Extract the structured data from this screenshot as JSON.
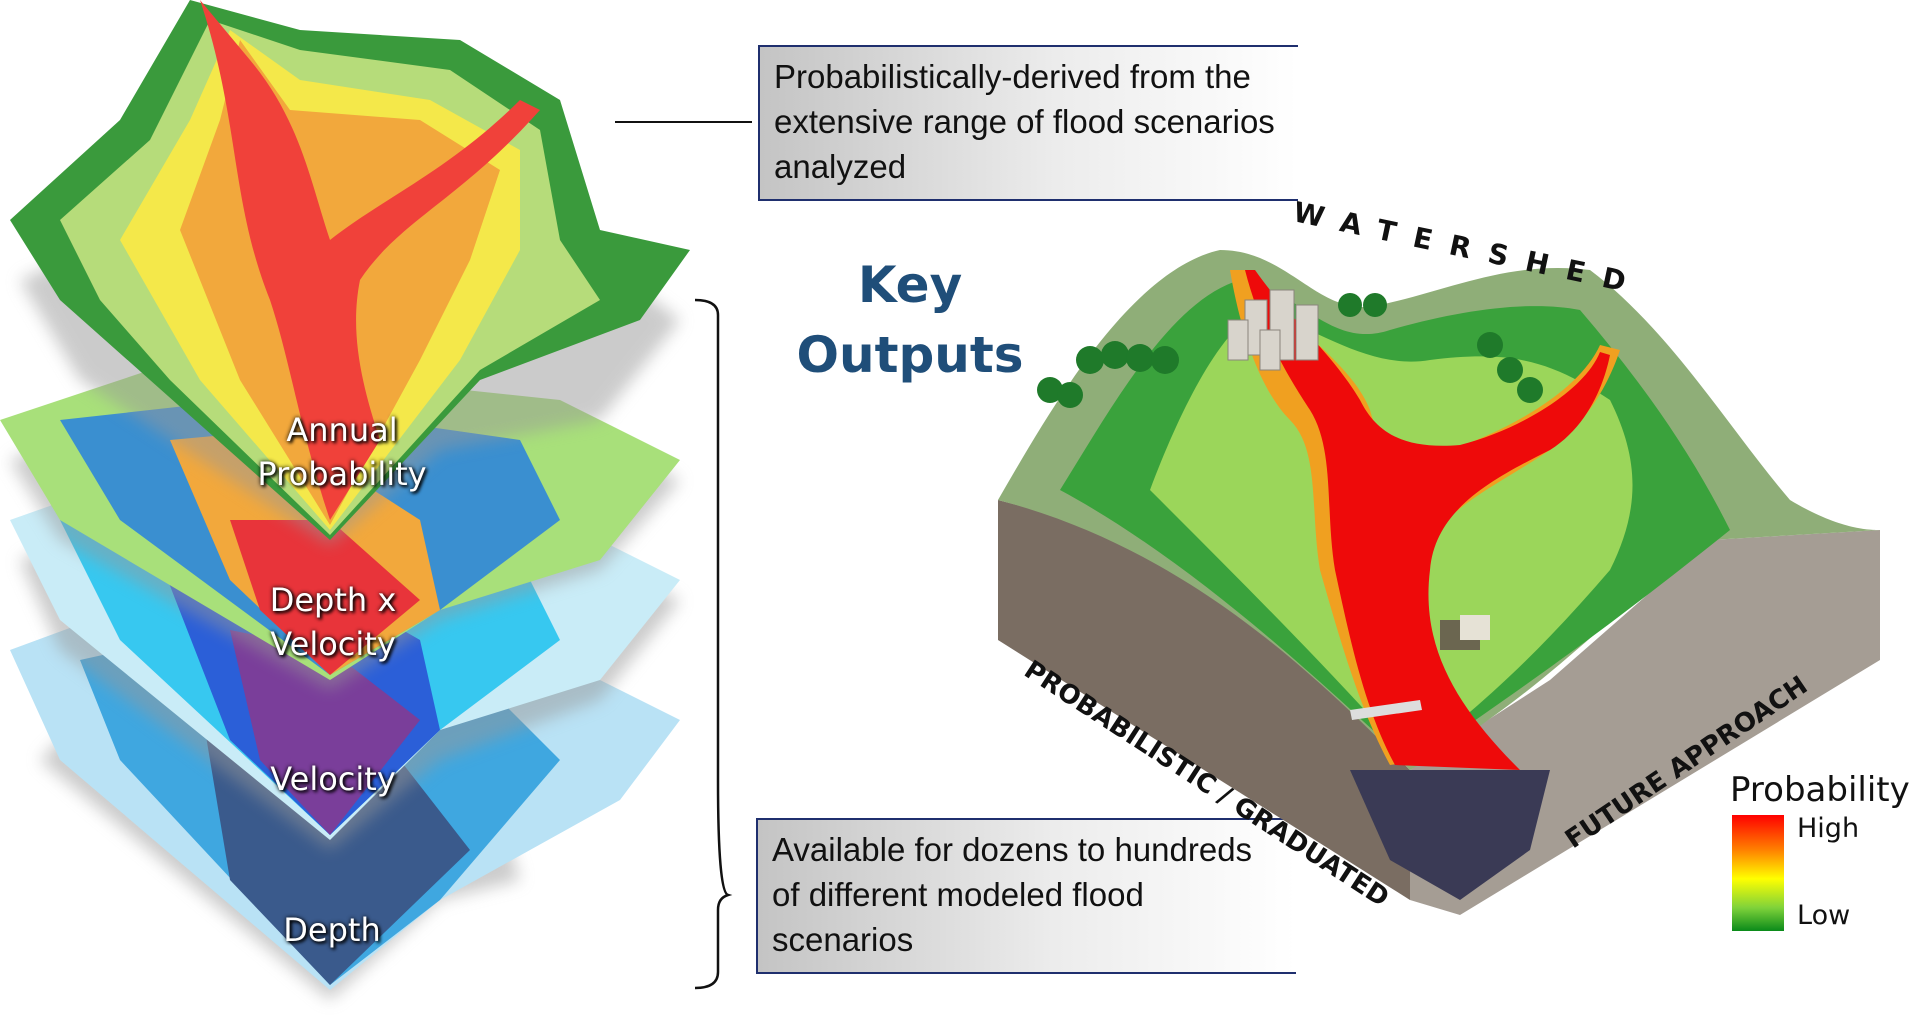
{
  "top_callout": {
    "text": "Probabilistically-derived from the extensive range of flood scenarios analyzed"
  },
  "bottom_callout": {
    "text": "Available for dozens to hundreds of different modeled flood scenarios"
  },
  "key_outputs": {
    "line1": "Key",
    "line2": "Outputs"
  },
  "layers": [
    {
      "label_line1": "Annual",
      "label_line2": "Probability"
    },
    {
      "label_line1": "Depth x",
      "label_line2": "Velocity"
    },
    {
      "label_line1": "Velocity",
      "label_line2": ""
    },
    {
      "label_line1": "Depth",
      "label_line2": ""
    }
  ],
  "watershed": {
    "title": "WATERSHED",
    "left_face_label": "PROBABILISTIC / GRADUATED",
    "right_face_label": "FUTURE APPROACH"
  },
  "legend": {
    "title": "Probability",
    "high": "High",
    "low": "Low",
    "colors": [
      "#ff0000",
      "#ff8000",
      "#ffff00",
      "#7fd23a",
      "#0a8a1a"
    ]
  },
  "colors": {
    "accent": "#1f4e79",
    "box_border": "#1f2f6e"
  }
}
